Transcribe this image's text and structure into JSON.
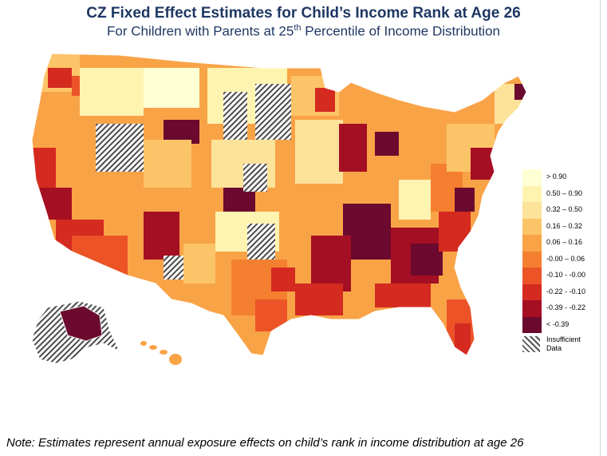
{
  "title": "CZ Fixed Effect Estimates for Child’s Income Rank at Age 26",
  "subtitle": {
    "before": "For Children with Parents at 25",
    "sup": "th",
    "after": " Percentile of Income Distribution"
  },
  "legend": {
    "bins": [
      {
        "label": "> 0.90",
        "color": "#ffffd4"
      },
      {
        "label": "0.50 – 0.90",
        "color": "#fff3b0"
      },
      {
        "label": "0.32 – 0.50",
        "color": "#fde29a"
      },
      {
        "label": "0.16 – 0.32",
        "color": "#fcc468"
      },
      {
        "label": "0.06 – 0.16",
        "color": "#f9a347"
      },
      {
        "label": "-0.00 – 0.06",
        "color": "#f57f30"
      },
      {
        "label": "-0.10 - -0.00",
        "color": "#ec5428"
      },
      {
        "label": "-0.22 - -0.10",
        "color": "#d42a1f"
      },
      {
        "label": "-0.39 - -0.22",
        "color": "#a50f24"
      },
      {
        "label": "< -0.39",
        "color": "#6b0a2e"
      }
    ],
    "insufficient": "Insufficient Data"
  },
  "note": "Note: Estimates represent annual exposure effects on child’s rank in income distribution at age 26"
}
